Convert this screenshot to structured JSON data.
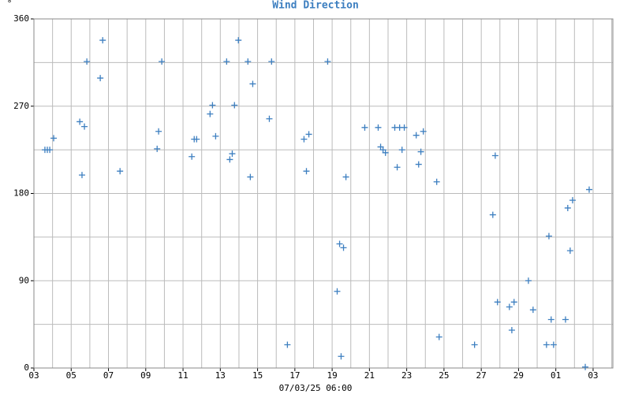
{
  "chart_data": {
    "type": "scatter",
    "title": "Wind Direction",
    "x_label": "07/03/25 06:00",
    "y_label": "°",
    "color": "#3d7fc0",
    "grid": true,
    "xlim": [
      0,
      31.06
    ],
    "ylim": [
      0,
      360
    ],
    "xticks": [
      {
        "value": 0,
        "label": "03"
      },
      {
        "value": 2,
        "label": "05"
      },
      {
        "value": 4,
        "label": "07"
      },
      {
        "value": 6,
        "label": "09"
      },
      {
        "value": 8,
        "label": "11"
      },
      {
        "value": 10,
        "label": "13"
      },
      {
        "value": 12,
        "label": "15"
      },
      {
        "value": 14,
        "label": "17"
      },
      {
        "value": 16,
        "label": "19"
      },
      {
        "value": 18,
        "label": "21"
      },
      {
        "value": 20,
        "label": "23"
      },
      {
        "value": 22,
        "label": "25"
      },
      {
        "value": 24,
        "label": "27"
      },
      {
        "value": 26,
        "label": "29"
      },
      {
        "value": 28,
        "label": "01"
      },
      {
        "value": 30,
        "label": "03"
      }
    ],
    "yticks": [
      0,
      90,
      180,
      270,
      360
    ],
    "x": [
      0.59,
      0.72,
      0.85,
      1.06,
      2.46,
      2.71,
      2.58,
      2.84,
      3.56,
      3.69,
      4.62,
      6.61,
      6.69,
      6.86,
      8.47,
      8.6,
      8.73,
      9.45,
      9.58,
      9.75,
      10.34,
      10.51,
      10.64,
      10.76,
      10.97,
      11.48,
      11.61,
      11.74,
      12.63,
      12.75,
      13.6,
      14.49,
      14.62,
      14.75,
      15.76,
      16.27,
      16.4,
      16.48,
      16.61,
      16.74,
      17.75,
      18.47,
      18.6,
      18.73,
      18.86,
      19.36,
      19.49,
      19.62,
      19.75,
      19.87,
      20.51,
      20.64,
      20.76,
      20.89,
      21.61,
      21.74,
      23.64,
      24.62,
      24.75,
      24.87,
      25.51,
      25.64,
      25.76,
      26.53,
      26.78,
      27.5,
      27.63,
      27.75,
      27.88,
      28.52,
      28.64,
      28.77,
      28.9,
      29.58,
      29.79
    ],
    "values": [
      225,
      225,
      225,
      237,
      254,
      249,
      199,
      316,
      299,
      338,
      203,
      226,
      244,
      316,
      218,
      236,
      236,
      262,
      271,
      239,
      316,
      215,
      221,
      271,
      338,
      316,
      197,
      293,
      257,
      316,
      24,
      236,
      203,
      241,
      316,
      79,
      128,
      12,
      124,
      197,
      248,
      248,
      228,
      225,
      222,
      248,
      207,
      248,
      225,
      248,
      240,
      210,
      223,
      244,
      192,
      32,
      24,
      158,
      219,
      68,
      63,
      39,
      68,
      90,
      60,
      24,
      136,
      50,
      24,
      50,
      165,
      121,
      173,
      1,
      184
    ]
  }
}
